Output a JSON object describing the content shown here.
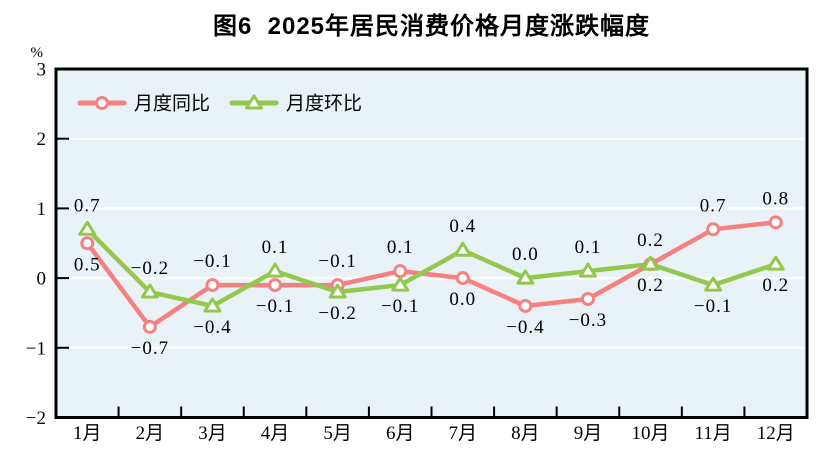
{
  "colors": {
    "plot_bg": "#e9f2f6",
    "grid": "#ffffff",
    "axis": "#000000",
    "text": "#000000",
    "tongbi_red": "#f58080",
    "huanbi_green": "#92c84e"
  },
  "chart_data": {
    "type": "line",
    "title": "图6  2025年居民消费价格月度涨跌幅度",
    "ylabel": "%",
    "xlabel": "",
    "ylim": [
      -2,
      3
    ],
    "yticks": [
      3,
      2,
      1,
      0,
      -1,
      -2
    ],
    "grid": true,
    "legend_position": "top-left-inside",
    "categories": [
      "1月",
      "2月",
      "3月",
      "4月",
      "5月",
      "6月",
      "7月",
      "8月",
      "9月",
      "10月",
      "11月",
      "12月"
    ],
    "series": [
      {
        "name": "月度同比",
        "marker": "circle",
        "color": "#f58080",
        "values": [
          0.5,
          -0.7,
          -0.1,
          -0.1,
          -0.1,
          0.1,
          0.0,
          -0.4,
          -0.3,
          0.2,
          0.7,
          0.8
        ],
        "label_positions": [
          "below",
          "below",
          "above",
          "below",
          "above",
          "above",
          "below",
          "below",
          "below",
          "above",
          "above",
          "above"
        ]
      },
      {
        "name": "月度环比",
        "marker": "triangle",
        "color": "#92c84e",
        "values": [
          0.7,
          -0.2,
          -0.4,
          0.1,
          -0.2,
          -0.1,
          0.4,
          0.0,
          0.1,
          0.2,
          -0.1,
          0.2
        ],
        "label_positions": [
          "above",
          "above",
          "below",
          "above",
          "below",
          "below",
          "above",
          "above",
          "above",
          "below",
          "below",
          "below"
        ]
      }
    ]
  }
}
